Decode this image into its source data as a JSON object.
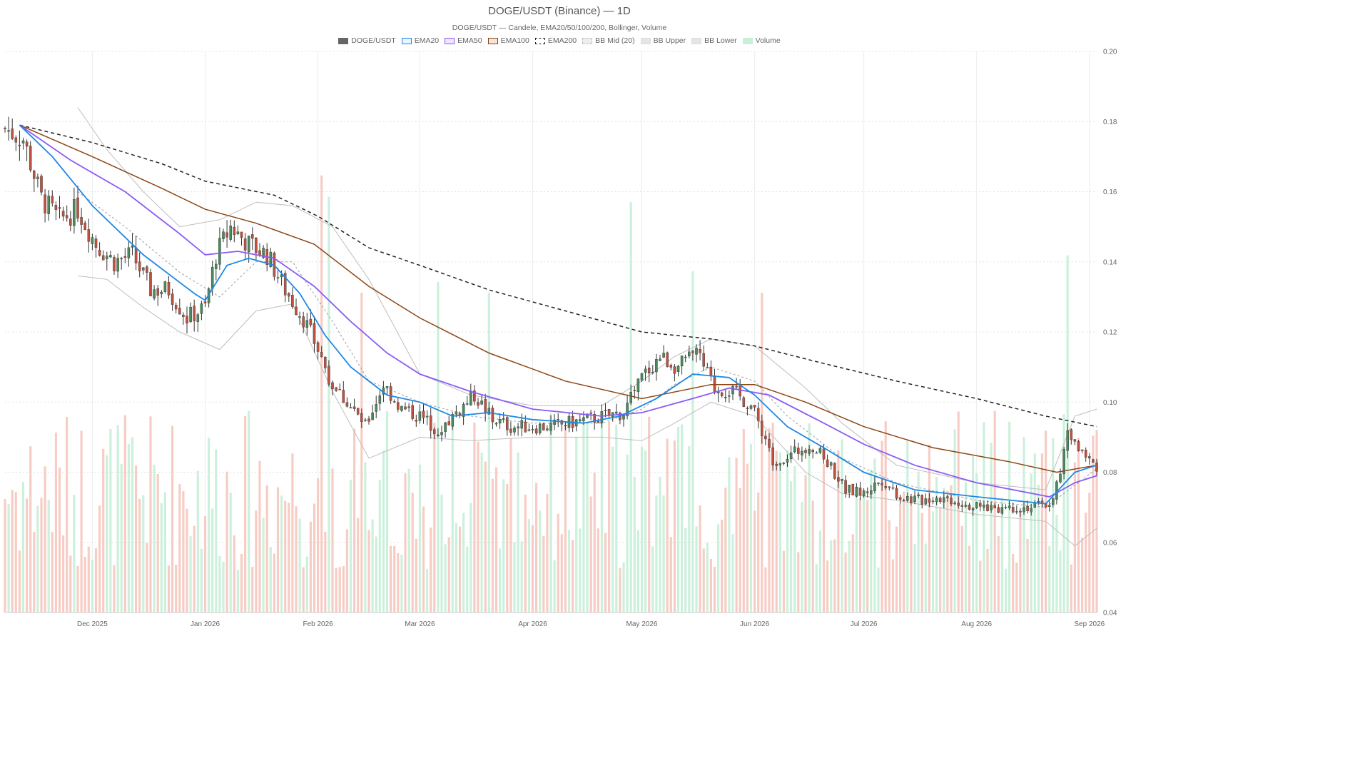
{
  "chart_data": {
    "type": "candlestick",
    "title": "DOGE/USDT (Binance) — 1D",
    "subtitle": "DOGE/USDT — Candele, EMA20/50/100/200, Bollinger, Volume",
    "legend_position": "top-center",
    "grid": true,
    "ylim": [
      0.04,
      0.2
    ],
    "y_axis_side": "right",
    "y_ticks": [
      "0.04",
      "0.06",
      "0.08",
      "0.10",
      "0.12",
      "0.14",
      "0.16",
      "0.18",
      "0.20"
    ],
    "x_range": [
      "2025-11-07",
      "2026-09-03"
    ],
    "x_ticks": [
      {
        "date": "2025-12-01",
        "label": "Dec 2025"
      },
      {
        "date": "2026-01-01",
        "label": "Jan 2026"
      },
      {
        "date": "2026-02-01",
        "label": "Feb 2026"
      },
      {
        "date": "2026-03-01",
        "label": "Mar 2026"
      },
      {
        "date": "2026-04-01",
        "label": "Apr 2026"
      },
      {
        "date": "2026-05-01",
        "label": "May 2026"
      },
      {
        "date": "2026-06-01",
        "label": "Jun 2026"
      },
      {
        "date": "2026-07-01",
        "label": "Jul 2026"
      },
      {
        "date": "2026-08-01",
        "label": "Aug 2026"
      },
      {
        "date": "2026-09-01",
        "label": "Sep 2026"
      }
    ],
    "legend": [
      {
        "label": "DOGE/USDT",
        "style": "fill",
        "color": "#666666",
        "border": "#666666"
      },
      {
        "label": "EMA20",
        "style": "fill",
        "color": "#eaf4fd",
        "border": "#1e88e5"
      },
      {
        "label": "EMA50",
        "style": "fill",
        "color": "#efe6fb",
        "border": "#8b5cf6"
      },
      {
        "label": "EMA100",
        "style": "fill",
        "color": "#f2e6dc",
        "border": "#8b4513"
      },
      {
        "label": "EMA200",
        "style": "dashed",
        "color": "#ffffff",
        "border": "#222222"
      },
      {
        "label": "BB Mid (20)",
        "style": "dotted",
        "color": "#eeeeee",
        "border": "#aaaaaa"
      },
      {
        "label": "BB Upper",
        "style": "fill",
        "color": "#e5e5e5",
        "border": "#dddddd"
      },
      {
        "label": "BB Lower",
        "style": "fill",
        "color": "#e5e5e5",
        "border": "#dddddd"
      },
      {
        "label": "Volume",
        "style": "fill",
        "color": "#c8efd9",
        "border": "#c8efd9"
      }
    ],
    "colors": {
      "up": "#4a8a5c",
      "down": "#c0513f",
      "wick": "#333333",
      "ema20": "#1e88e5",
      "ema50": "#8b5cf6",
      "ema100": "#8b4513",
      "ema200": "#222222",
      "bb_mid": "#9aa0a6",
      "bb_band": "#bdbdbd",
      "vol_up": "#c8efd9",
      "vol_down": "#f7c9c1"
    },
    "price_path": [
      [
        "2025-11-07",
        0.178
      ],
      [
        "2025-11-12",
        0.175
      ],
      [
        "2025-11-17",
        0.158
      ],
      [
        "2025-11-22",
        0.152
      ],
      [
        "2025-11-27",
        0.155
      ],
      [
        "2025-12-02",
        0.145
      ],
      [
        "2025-12-07",
        0.14
      ],
      [
        "2025-12-12",
        0.142
      ],
      [
        "2025-12-17",
        0.132
      ],
      [
        "2025-12-22",
        0.132
      ],
      [
        "2025-12-27",
        0.124
      ],
      [
        "2026-01-01",
        0.127
      ],
      [
        "2026-01-04",
        0.142
      ],
      [
        "2026-01-08",
        0.15
      ],
      [
        "2026-01-13",
        0.145
      ],
      [
        "2026-01-18",
        0.142
      ],
      [
        "2026-01-23",
        0.132
      ],
      [
        "2026-01-28",
        0.124
      ],
      [
        "2026-02-01",
        0.115
      ],
      [
        "2026-02-05",
        0.105
      ],
      [
        "2026-02-09",
        0.1
      ],
      [
        "2026-02-14",
        0.093
      ],
      [
        "2026-02-19",
        0.105
      ],
      [
        "2026-02-24",
        0.098
      ],
      [
        "2026-03-01",
        0.096
      ],
      [
        "2026-03-06",
        0.092
      ],
      [
        "2026-03-11",
        0.097
      ],
      [
        "2026-03-16",
        0.102
      ],
      [
        "2026-03-21",
        0.095
      ],
      [
        "2026-03-26",
        0.093
      ],
      [
        "2026-04-01",
        0.093
      ],
      [
        "2026-04-06",
        0.093
      ],
      [
        "2026-04-11",
        0.094
      ],
      [
        "2026-04-16",
        0.095
      ],
      [
        "2026-04-21",
        0.096
      ],
      [
        "2026-04-26",
        0.097
      ],
      [
        "2026-05-01",
        0.107
      ],
      [
        "2026-05-06",
        0.113
      ],
      [
        "2026-05-11",
        0.11
      ],
      [
        "2026-05-16",
        0.114
      ],
      [
        "2026-05-21",
        0.104
      ],
      [
        "2026-05-26",
        0.103
      ],
      [
        "2026-05-31",
        0.099
      ],
      [
        "2026-06-03",
        0.092
      ],
      [
        "2026-06-06",
        0.083
      ],
      [
        "2026-06-11",
        0.085
      ],
      [
        "2026-06-16",
        0.088
      ],
      [
        "2026-06-21",
        0.083
      ],
      [
        "2026-06-26",
        0.075
      ],
      [
        "2026-07-01",
        0.074
      ],
      [
        "2026-07-06",
        0.078
      ],
      [
        "2026-07-11",
        0.073
      ],
      [
        "2026-07-16",
        0.072
      ],
      [
        "2026-07-21",
        0.073
      ],
      [
        "2026-07-26",
        0.072
      ],
      [
        "2026-08-01",
        0.07
      ],
      [
        "2026-08-06",
        0.07
      ],
      [
        "2026-08-11",
        0.07
      ],
      [
        "2026-08-16",
        0.07
      ],
      [
        "2026-08-21",
        0.071
      ],
      [
        "2026-08-24",
        0.079
      ],
      [
        "2026-08-26",
        0.092
      ],
      [
        "2026-08-29",
        0.087
      ],
      [
        "2026-09-01",
        0.083
      ],
      [
        "2026-09-03",
        0.082
      ]
    ],
    "ema20": [
      [
        "2025-11-11",
        0.179
      ],
      [
        "2025-11-20",
        0.17
      ],
      [
        "2025-12-01",
        0.156
      ],
      [
        "2025-12-15",
        0.142
      ],
      [
        "2025-12-29",
        0.131
      ],
      [
        "2026-01-01",
        0.129
      ],
      [
        "2026-01-07",
        0.139
      ],
      [
        "2026-01-13",
        0.141
      ],
      [
        "2026-01-20",
        0.139
      ],
      [
        "2026-01-27",
        0.131
      ],
      [
        "2026-02-03",
        0.119
      ],
      [
        "2026-02-10",
        0.11
      ],
      [
        "2026-02-20",
        0.102
      ],
      [
        "2026-03-01",
        0.1
      ],
      [
        "2026-03-10",
        0.096
      ],
      [
        "2026-03-20",
        0.097
      ],
      [
        "2026-04-01",
        0.095
      ],
      [
        "2026-04-15",
        0.094
      ],
      [
        "2026-04-25",
        0.096
      ],
      [
        "2026-05-05",
        0.101
      ],
      [
        "2026-05-15",
        0.108
      ],
      [
        "2026-05-25",
        0.107
      ],
      [
        "2026-06-01",
        0.102
      ],
      [
        "2026-06-10",
        0.093
      ],
      [
        "2026-06-20",
        0.087
      ],
      [
        "2026-07-01",
        0.08
      ],
      [
        "2026-07-15",
        0.075
      ],
      [
        "2026-08-01",
        0.073
      ],
      [
        "2026-08-20",
        0.071
      ],
      [
        "2026-08-28",
        0.08
      ],
      [
        "2026-09-03",
        0.082
      ]
    ],
    "ema50": [
      [
        "2025-11-11",
        0.179
      ],
      [
        "2025-11-25",
        0.169
      ],
      [
        "2025-12-10",
        0.16
      ],
      [
        "2025-12-25",
        0.148
      ],
      [
        "2026-01-01",
        0.142
      ],
      [
        "2026-01-10",
        0.143
      ],
      [
        "2026-01-20",
        0.141
      ],
      [
        "2026-01-31",
        0.133
      ],
      [
        "2026-02-10",
        0.123
      ],
      [
        "2026-02-20",
        0.114
      ],
      [
        "2026-03-01",
        0.108
      ],
      [
        "2026-03-15",
        0.103
      ],
      [
        "2026-04-01",
        0.098
      ],
      [
        "2026-04-20",
        0.096
      ],
      [
        "2026-05-01",
        0.097
      ],
      [
        "2026-05-15",
        0.101
      ],
      [
        "2026-05-25",
        0.104
      ],
      [
        "2026-06-05",
        0.102
      ],
      [
        "2026-06-20",
        0.094
      ],
      [
        "2026-07-01",
        0.088
      ],
      [
        "2026-07-15",
        0.082
      ],
      [
        "2026-08-01",
        0.077
      ],
      [
        "2026-08-21",
        0.073
      ],
      [
        "2026-08-28",
        0.077
      ],
      [
        "2026-09-03",
        0.079
      ]
    ],
    "ema100": [
      [
        "2025-11-11",
        0.179
      ],
      [
        "2025-12-01",
        0.17
      ],
      [
        "2025-12-20",
        0.161
      ],
      [
        "2026-01-01",
        0.155
      ],
      [
        "2026-01-15",
        0.151
      ],
      [
        "2026-01-31",
        0.145
      ],
      [
        "2026-02-15",
        0.133
      ],
      [
        "2026-03-01",
        0.124
      ],
      [
        "2026-03-20",
        0.114
      ],
      [
        "2026-04-10",
        0.106
      ],
      [
        "2026-05-01",
        0.101
      ],
      [
        "2026-05-20",
        0.105
      ],
      [
        "2026-06-01",
        0.105
      ],
      [
        "2026-06-15",
        0.1
      ],
      [
        "2026-07-01",
        0.093
      ],
      [
        "2026-07-20",
        0.087
      ],
      [
        "2026-08-10",
        0.083
      ],
      [
        "2026-08-23",
        0.08
      ],
      [
        "2026-09-03",
        0.082
      ]
    ],
    "ema200": [
      [
        "2025-11-11",
        0.179
      ],
      [
        "2025-12-01",
        0.174
      ],
      [
        "2025-12-20",
        0.168
      ],
      [
        "2026-01-01",
        0.163
      ],
      [
        "2026-01-20",
        0.159
      ],
      [
        "2026-02-01",
        0.153
      ],
      [
        "2026-02-15",
        0.144
      ],
      [
        "2026-03-01",
        0.139
      ],
      [
        "2026-03-20",
        0.132
      ],
      [
        "2026-04-10",
        0.126
      ],
      [
        "2026-05-01",
        0.12
      ],
      [
        "2026-05-20",
        0.118
      ],
      [
        "2026-06-01",
        0.116
      ],
      [
        "2026-06-20",
        0.111
      ],
      [
        "2026-07-10",
        0.106
      ],
      [
        "2026-08-01",
        0.101
      ],
      [
        "2026-08-20",
        0.096
      ],
      [
        "2026-09-03",
        0.093
      ]
    ],
    "bb_mid": [
      [
        "2025-11-27",
        0.16
      ],
      [
        "2025-12-10",
        0.15
      ],
      [
        "2025-12-25",
        0.137
      ],
      [
        "2026-01-05",
        0.13
      ],
      [
        "2026-01-15",
        0.14
      ],
      [
        "2026-01-25",
        0.14
      ],
      [
        "2026-02-05",
        0.123
      ],
      [
        "2026-02-15",
        0.106
      ],
      [
        "2026-03-01",
        0.1
      ],
      [
        "2026-03-15",
        0.096
      ],
      [
        "2026-04-01",
        0.094
      ],
      [
        "2026-04-20",
        0.094
      ],
      [
        "2026-05-01",
        0.098
      ],
      [
        "2026-05-10",
        0.105
      ],
      [
        "2026-05-20",
        0.11
      ],
      [
        "2026-06-01",
        0.106
      ],
      [
        "2026-06-10",
        0.096
      ],
      [
        "2026-06-25",
        0.084
      ],
      [
        "2026-07-10",
        0.077
      ],
      [
        "2026-08-01",
        0.072
      ],
      [
        "2026-08-20",
        0.07
      ],
      [
        "2026-09-03",
        0.081
      ]
    ],
    "bb_upper": [
      [
        "2025-11-27",
        0.184
      ],
      [
        "2025-12-05",
        0.172
      ],
      [
        "2025-12-15",
        0.16
      ],
      [
        "2025-12-25",
        0.15
      ],
      [
        "2026-01-05",
        0.152
      ],
      [
        "2026-01-15",
        0.157
      ],
      [
        "2026-01-25",
        0.156
      ],
      [
        "2026-02-05",
        0.15
      ],
      [
        "2026-02-15",
        0.135
      ],
      [
        "2026-03-01",
        0.108
      ],
      [
        "2026-03-15",
        0.102
      ],
      [
        "2026-04-01",
        0.099
      ],
      [
        "2026-04-20",
        0.099
      ],
      [
        "2026-05-01",
        0.106
      ],
      [
        "2026-05-10",
        0.113
      ],
      [
        "2026-05-20",
        0.118
      ],
      [
        "2026-06-01",
        0.116
      ],
      [
        "2026-06-15",
        0.104
      ],
      [
        "2026-06-25",
        0.094
      ],
      [
        "2026-07-10",
        0.082
      ],
      [
        "2026-08-01",
        0.077
      ],
      [
        "2026-08-20",
        0.075
      ],
      [
        "2026-08-28",
        0.096
      ],
      [
        "2026-09-03",
        0.098
      ]
    ],
    "bb_lower": [
      [
        "2025-11-27",
        0.136
      ],
      [
        "2025-12-05",
        0.135
      ],
      [
        "2025-12-15",
        0.127
      ],
      [
        "2025-12-25",
        0.12
      ],
      [
        "2026-01-05",
        0.115
      ],
      [
        "2026-01-15",
        0.126
      ],
      [
        "2026-01-25",
        0.128
      ],
      [
        "2026-02-05",
        0.103
      ],
      [
        "2026-02-15",
        0.084
      ],
      [
        "2026-03-01",
        0.09
      ],
      [
        "2026-03-15",
        0.089
      ],
      [
        "2026-04-01",
        0.09
      ],
      [
        "2026-04-20",
        0.09
      ],
      [
        "2026-05-01",
        0.089
      ],
      [
        "2026-05-10",
        0.094
      ],
      [
        "2026-05-20",
        0.1
      ],
      [
        "2026-06-01",
        0.096
      ],
      [
        "2026-06-15",
        0.08
      ],
      [
        "2026-06-25",
        0.074
      ],
      [
        "2026-07-10",
        0.072
      ],
      [
        "2026-08-01",
        0.068
      ],
      [
        "2026-08-20",
        0.066
      ],
      [
        "2026-08-28",
        0.059
      ],
      [
        "2026-09-03",
        0.064
      ]
    ],
    "volume_spikes": [
      [
        "2026-02-02",
        "down",
        0.82
      ],
      [
        "2026-02-04",
        "up",
        0.78
      ],
      [
        "2026-02-13",
        "down",
        0.6
      ],
      [
        "2026-03-06",
        "up",
        0.62
      ],
      [
        "2026-03-20",
        "up",
        0.6
      ],
      [
        "2026-04-28",
        "up",
        0.77
      ],
      [
        "2026-05-15",
        "up",
        0.64
      ],
      [
        "2026-06-03",
        "down",
        0.6
      ],
      [
        "2026-08-26",
        "up",
        0.67
      ]
    ]
  }
}
